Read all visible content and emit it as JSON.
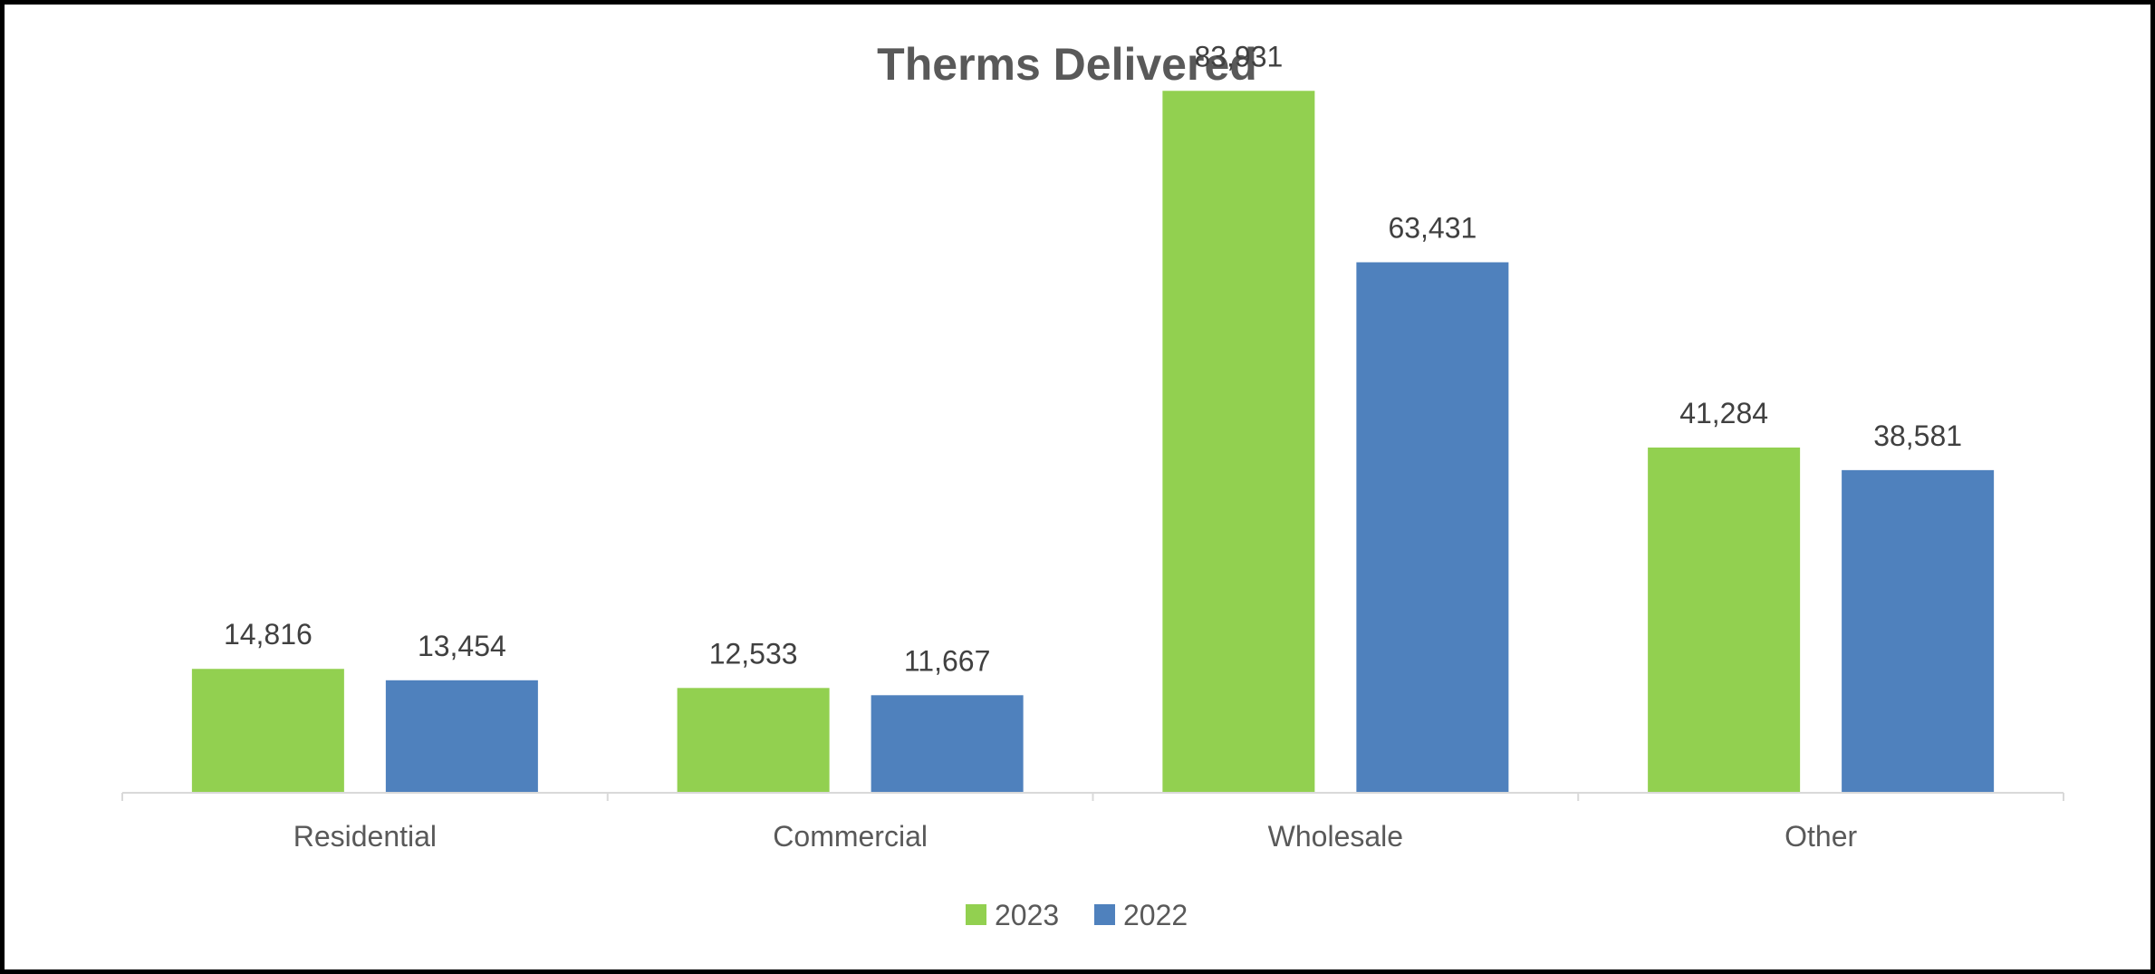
{
  "chart_data": {
    "type": "bar",
    "title": "Therms Delivered",
    "xlabel": "",
    "ylabel": "",
    "categories": [
      "Residential",
      "Commercial",
      "Wholesale",
      "Other"
    ],
    "series": [
      {
        "name": "2023",
        "color": "#92d050",
        "values": [
          14816,
          12533,
          83931,
          41284
        ],
        "labels": [
          "14,816",
          "12,533",
          "83,931",
          "41,284"
        ]
      },
      {
        "name": "2022",
        "color": "#4f81bd",
        "values": [
          13454,
          11667,
          63431,
          38581
        ],
        "labels": [
          "13,454",
          "11,667",
          "63,431",
          "38,581"
        ]
      }
    ],
    "ylim": [
      0,
      91000
    ],
    "grid": false,
    "legend_position": "bottom"
  }
}
